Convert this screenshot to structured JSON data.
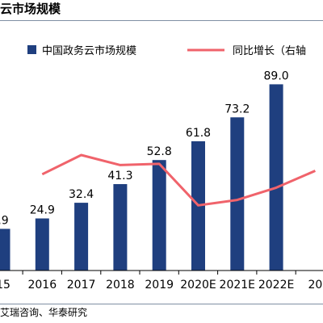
{
  "header": {
    "title": "云市场规模"
  },
  "footer": {
    "source": "艾瑞咨询、华泰研究"
  },
  "colors": {
    "bar": "#1f3f7f",
    "line": "#f0636b"
  },
  "chart_data": {
    "type": "bar",
    "categories": [
      "15",
      "2016",
      "2017",
      "2018",
      "2019",
      "2020E",
      "2021E",
      "2022E",
      "20"
    ],
    "series": [
      {
        "name": "中国政务云市场规模",
        "type": "bar",
        "values": [
          19.9,
          24.9,
          32.4,
          41.3,
          52.8,
          61.8,
          73.2,
          89.0,
          null
        ],
        "labels": [
          ".9",
          "24.9",
          "32.4",
          "41.3",
          "52.8",
          "61.8",
          "73.2",
          "89.0",
          ""
        ]
      },
      {
        "name": "同比增长（右轴",
        "type": "line",
        "axis": "right",
        "values": [
          null,
          25.1,
          30.1,
          27.5,
          27.8,
          17.0,
          18.4,
          21.6,
          26.0
        ]
      }
    ],
    "ylim": [
      0,
      110
    ],
    "y2lim": [
      0,
      60
    ],
    "legend_position": "top"
  }
}
